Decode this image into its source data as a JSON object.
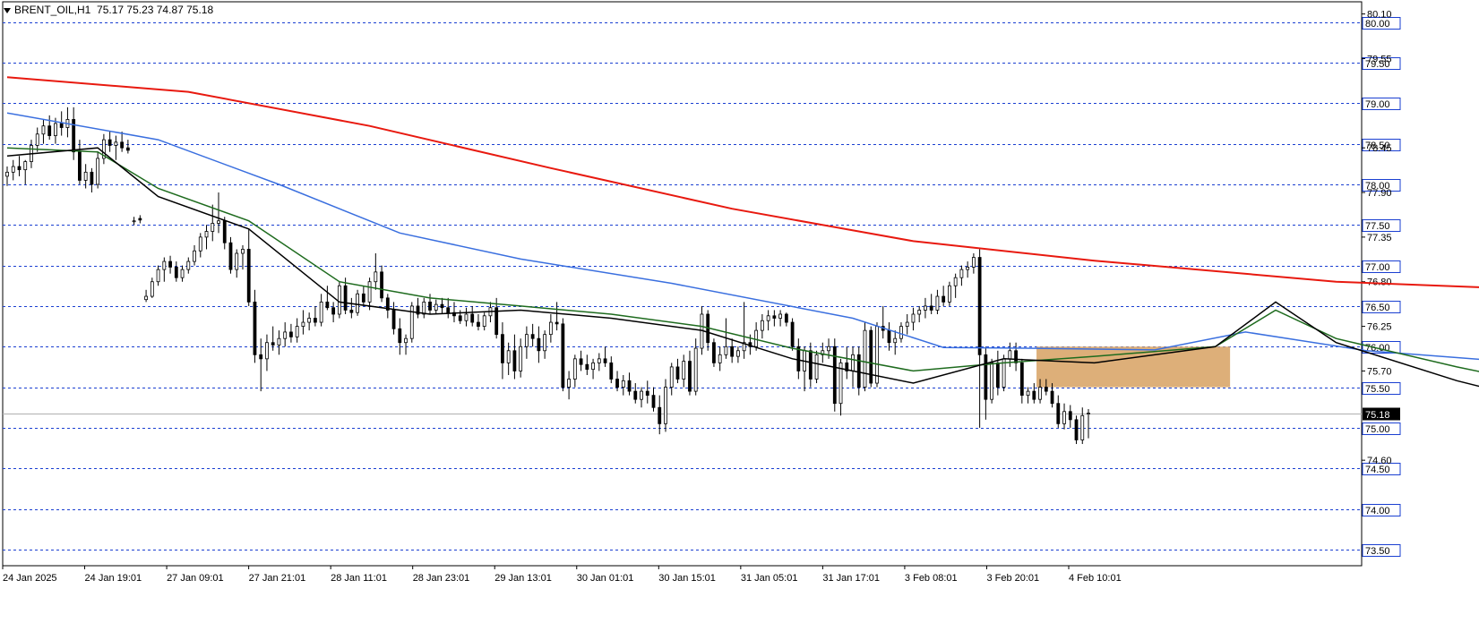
{
  "header": {
    "symbol": "BRENT_OIL,H1",
    "ohlc": "75.17 75.23 74.87 75.18"
  },
  "colors": {
    "background": "#ffffff",
    "grid_level": "#1a3fd1",
    "ma_fast": "#000000",
    "ma_mid": "#1e6b1e",
    "ma_slow": "#3a6fdf",
    "ma_long": "#e8190f",
    "zone_fill": "#d9a66a",
    "price_label_bg": "#000000"
  },
  "chart_data": {
    "type": "candlestick",
    "ylim": [
      73.3,
      80.25
    ],
    "y_ticks": [
      "80.10",
      "79.55",
      "78.45",
      "77.90",
      "77.35",
      "76.80",
      "76.25",
      "75.70",
      "74.60"
    ],
    "level_lines": [
      "80.00",
      "79.50",
      "79.00",
      "78.50",
      "78.00",
      "77.50",
      "77.00",
      "76.50",
      "76.00",
      "75.50",
      "75.00",
      "74.50",
      "74.00",
      "73.50"
    ],
    "current_price": "75.18",
    "x_labels": [
      "24 Jan 2025",
      "24 Jan 19:01",
      "27 Jan 09:01",
      "27 Jan 21:01",
      "28 Jan 11:01",
      "28 Jan 23:01",
      "29 Jan 13:01",
      "30 Jan 01:01",
      "30 Jan 15:01",
      "31 Jan 05:01",
      "31 Jan 17:01",
      "3 Feb 08:01",
      "3 Feb 20:01",
      "4 Feb 10:01"
    ],
    "zone": {
      "bar_start": 171,
      "bar_end": 198,
      "price_low": 75.5,
      "price_high": 76.0
    },
    "candles": [
      [
        78.1,
        78.22,
        77.98,
        78.15
      ],
      [
        78.15,
        78.3,
        78.05,
        78.22
      ],
      [
        78.22,
        78.35,
        78.1,
        78.18
      ],
      [
        78.18,
        78.3,
        78.0,
        78.28
      ],
      [
        78.28,
        78.55,
        78.2,
        78.48
      ],
      [
        78.48,
        78.7,
        78.4,
        78.62
      ],
      [
        78.62,
        78.8,
        78.5,
        78.72
      ],
      [
        78.72,
        78.85,
        78.55,
        78.6
      ],
      [
        78.6,
        78.82,
        78.5,
        78.75
      ],
      [
        78.75,
        78.9,
        78.6,
        78.7
      ],
      [
        78.7,
        78.95,
        78.58,
        78.8
      ],
      [
        78.8,
        78.95,
        78.3,
        78.4
      ],
      [
        78.4,
        78.55,
        78.0,
        78.05
      ],
      [
        78.05,
        78.25,
        77.95,
        78.15
      ],
      [
        78.15,
        78.2,
        77.9,
        78.0
      ],
      [
        78.0,
        78.4,
        77.95,
        78.32
      ],
      [
        78.32,
        78.62,
        78.25,
        78.55
      ],
      [
        78.55,
        78.65,
        78.4,
        78.48
      ],
      [
        78.48,
        78.6,
        78.3,
        78.52
      ],
      [
        78.52,
        78.65,
        78.4,
        78.45
      ],
      [
        78.45,
        78.55,
        78.38,
        78.42
      ],
      [
        77.55,
        77.6,
        77.5,
        77.55
      ],
      [
        77.58,
        77.62,
        77.52,
        77.56
      ],
      [
        76.58,
        76.7,
        76.55,
        76.62
      ],
      [
        76.62,
        76.85,
        76.6,
        76.8
      ],
      [
        76.8,
        77.0,
        76.75,
        76.95
      ],
      [
        76.95,
        77.1,
        76.8,
        77.05
      ],
      [
        77.05,
        77.12,
        76.9,
        76.98
      ],
      [
        76.98,
        77.05,
        76.8,
        76.85
      ],
      [
        76.85,
        77.0,
        76.8,
        76.95
      ],
      [
        76.95,
        77.1,
        76.9,
        77.05
      ],
      [
        77.05,
        77.25,
        77.0,
        77.18
      ],
      [
        77.18,
        77.4,
        77.1,
        77.35
      ],
      [
        77.35,
        77.5,
        77.2,
        77.42
      ],
      [
        77.42,
        77.75,
        77.3,
        77.52
      ],
      [
        77.52,
        77.9,
        77.4,
        77.55
      ],
      [
        77.55,
        77.6,
        77.2,
        77.28
      ],
      [
        77.28,
        77.35,
        76.9,
        76.95
      ],
      [
        76.95,
        77.2,
        76.85,
        77.15
      ],
      [
        77.15,
        77.25,
        76.95,
        77.2
      ],
      [
        77.2,
        77.45,
        76.5,
        76.55
      ],
      [
        76.55,
        76.7,
        75.8,
        75.9
      ],
      [
        75.9,
        76.1,
        75.45,
        75.85
      ],
      [
        75.85,
        76.15,
        75.7,
        76.05
      ],
      [
        76.05,
        76.25,
        75.95,
        76.02
      ],
      [
        76.02,
        76.2,
        75.9,
        76.1
      ],
      [
        76.1,
        76.3,
        76.0,
        76.18
      ],
      [
        76.18,
        76.28,
        76.05,
        76.12
      ],
      [
        76.12,
        76.35,
        76.05,
        76.25
      ],
      [
        76.25,
        76.45,
        76.15,
        76.3
      ],
      [
        76.3,
        76.42,
        76.2,
        76.35
      ],
      [
        76.35,
        76.5,
        76.25,
        76.3
      ],
      [
        76.3,
        76.65,
        76.25,
        76.55
      ],
      [
        76.55,
        76.75,
        76.45,
        76.48
      ],
      [
        76.48,
        76.55,
        76.3,
        76.4
      ],
      [
        76.4,
        76.8,
        76.35,
        76.75
      ],
      [
        76.75,
        76.85,
        76.4,
        76.45
      ],
      [
        76.45,
        76.6,
        76.35,
        76.42
      ],
      [
        76.42,
        76.7,
        76.38,
        76.65
      ],
      [
        76.65,
        76.75,
        76.5,
        76.55
      ],
      [
        76.55,
        76.85,
        76.45,
        76.8
      ],
      [
        76.8,
        77.15,
        76.7,
        76.92
      ],
      [
        76.92,
        77.0,
        76.55,
        76.6
      ],
      [
        76.6,
        76.65,
        76.35,
        76.45
      ],
      [
        76.45,
        76.55,
        76.15,
        76.22
      ],
      [
        76.22,
        76.35,
        75.9,
        76.05
      ],
      [
        76.05,
        76.15,
        75.9,
        76.1
      ],
      [
        76.1,
        76.55,
        76.05,
        76.5
      ],
      [
        76.5,
        76.6,
        76.35,
        76.4
      ],
      [
        76.4,
        76.6,
        76.35,
        76.55
      ],
      [
        76.55,
        76.65,
        76.4,
        76.45
      ],
      [
        76.45,
        76.58,
        76.4,
        76.52
      ],
      [
        76.52,
        76.6,
        76.4,
        76.48
      ],
      [
        76.48,
        76.6,
        76.35,
        76.42
      ],
      [
        76.42,
        76.55,
        76.3,
        76.38
      ],
      [
        76.38,
        76.45,
        76.28,
        76.32
      ],
      [
        76.32,
        76.48,
        76.25,
        76.4
      ],
      [
        76.4,
        76.5,
        76.25,
        76.3
      ],
      [
        76.3,
        76.4,
        76.2,
        76.25
      ],
      [
        76.25,
        76.42,
        76.2,
        76.38
      ],
      [
        76.38,
        76.55,
        76.3,
        76.48
      ],
      [
        76.48,
        76.6,
        76.1,
        76.15
      ],
      [
        76.15,
        76.3,
        75.6,
        75.8
      ],
      [
        75.8,
        76.05,
        75.65,
        75.95
      ],
      [
        75.95,
        76.15,
        75.6,
        75.7
      ],
      [
        75.7,
        76.1,
        75.62,
        76.0
      ],
      [
        76.0,
        76.25,
        75.85,
        76.15
      ],
      [
        76.15,
        76.28,
        76.0,
        76.1
      ],
      [
        76.1,
        76.25,
        75.8,
        75.95
      ],
      [
        75.95,
        76.2,
        75.85,
        76.15
      ],
      [
        76.15,
        76.4,
        76.05,
        76.3
      ],
      [
        76.3,
        76.55,
        76.2,
        76.28
      ],
      [
        76.28,
        76.35,
        75.45,
        75.5
      ],
      [
        75.5,
        75.7,
        75.35,
        75.6
      ],
      [
        75.6,
        75.9,
        75.5,
        75.85
      ],
      [
        75.85,
        75.95,
        75.7,
        75.78
      ],
      [
        75.78,
        75.9,
        75.65,
        75.72
      ],
      [
        75.72,
        75.85,
        75.6,
        75.8
      ],
      [
        75.8,
        75.92,
        75.7,
        75.85
      ],
      [
        75.85,
        76.0,
        75.75,
        75.8
      ],
      [
        75.8,
        75.88,
        75.55,
        75.6
      ],
      [
        75.6,
        75.7,
        75.45,
        75.5
      ],
      [
        75.5,
        75.65,
        75.4,
        75.58
      ],
      [
        75.58,
        75.68,
        75.4,
        75.45
      ],
      [
        75.45,
        75.55,
        75.3,
        75.35
      ],
      [
        75.35,
        75.5,
        75.25,
        75.45
      ],
      [
        75.45,
        75.58,
        75.3,
        75.4
      ],
      [
        75.4,
        75.5,
        75.2,
        75.25
      ],
      [
        75.25,
        75.4,
        74.92,
        75.05
      ],
      [
        75.05,
        75.6,
        74.95,
        75.5
      ],
      [
        75.5,
        75.8,
        75.4,
        75.75
      ],
      [
        75.75,
        75.85,
        75.55,
        75.6
      ],
      [
        75.6,
        75.9,
        75.5,
        75.82
      ],
      [
        75.82,
        75.95,
        75.4,
        75.45
      ],
      [
        75.45,
        76.1,
        75.4,
        75.98
      ],
      [
        75.98,
        76.5,
        75.9,
        76.4
      ],
      [
        76.4,
        76.45,
        75.95,
        76.05
      ],
      [
        76.05,
        76.1,
        75.75,
        75.8
      ],
      [
        75.8,
        76.0,
        75.7,
        75.9
      ],
      [
        75.9,
        76.35,
        75.85,
        76.0
      ],
      [
        76.0,
        76.1,
        75.8,
        75.88
      ],
      [
        75.88,
        76.0,
        75.8,
        75.95
      ],
      [
        75.95,
        76.55,
        75.85,
        76.05
      ],
      [
        76.05,
        76.15,
        75.9,
        76.0
      ],
      [
        76.0,
        76.3,
        75.95,
        76.2
      ],
      [
        76.2,
        76.4,
        76.1,
        76.32
      ],
      [
        76.32,
        76.45,
        76.2,
        76.38
      ],
      [
        76.38,
        76.45,
        76.25,
        76.35
      ],
      [
        76.35,
        76.45,
        76.25,
        76.4
      ],
      [
        76.4,
        76.42,
        76.25,
        76.3
      ],
      [
        76.3,
        76.35,
        75.95,
        76.0
      ],
      [
        76.0,
        76.1,
        75.6,
        75.7
      ],
      [
        75.7,
        76.0,
        75.45,
        75.95
      ],
      [
        75.95,
        76.05,
        75.5,
        75.6
      ],
      [
        75.6,
        75.95,
        75.55,
        75.9
      ],
      [
        75.9,
        76.05,
        75.8,
        75.95
      ],
      [
        75.95,
        76.1,
        75.85,
        76.0
      ],
      [
        76.0,
        76.1,
        75.2,
        75.3
      ],
      [
        75.3,
        75.85,
        75.15,
        75.8
      ],
      [
        75.8,
        76.0,
        75.6,
        75.7
      ],
      [
        75.7,
        76.0,
        75.5,
        75.9
      ],
      [
        75.9,
        76.0,
        75.4,
        75.5
      ],
      [
        75.5,
        76.3,
        75.45,
        76.2
      ],
      [
        76.2,
        76.25,
        75.5,
        75.55
      ],
      [
        75.55,
        76.3,
        75.5,
        76.25
      ],
      [
        76.25,
        76.5,
        76.1,
        76.2
      ],
      [
        76.2,
        76.3,
        75.95,
        76.05
      ],
      [
        76.05,
        76.2,
        75.9,
        76.1
      ],
      [
        76.1,
        76.3,
        76.05,
        76.25
      ],
      [
        76.25,
        76.4,
        76.15,
        76.3
      ],
      [
        76.3,
        76.48,
        76.2,
        76.4
      ],
      [
        76.4,
        76.5,
        76.3,
        76.45
      ],
      [
        76.45,
        76.6,
        76.35,
        76.5
      ],
      [
        76.5,
        76.65,
        76.4,
        76.45
      ],
      [
        76.45,
        76.7,
        76.4,
        76.62
      ],
      [
        76.62,
        76.75,
        76.5,
        76.55
      ],
      [
        76.55,
        76.8,
        76.5,
        76.75
      ],
      [
        76.75,
        76.9,
        76.6,
        76.85
      ],
      [
        76.85,
        77.0,
        76.75,
        76.95
      ],
      [
        76.95,
        77.05,
        76.85,
        76.98
      ],
      [
        76.98,
        77.15,
        76.9,
        77.1
      ],
      [
        77.1,
        77.2,
        75.0,
        75.9
      ],
      [
        75.9,
        76.0,
        75.1,
        75.35
      ],
      [
        75.35,
        75.85,
        75.3,
        75.8
      ],
      [
        75.8,
        75.95,
        75.4,
        75.5
      ],
      [
        75.5,
        75.9,
        75.45,
        75.85
      ],
      [
        75.85,
        76.05,
        75.75,
        75.95
      ],
      [
        75.95,
        76.05,
        75.7,
        75.8
      ],
      [
        75.8,
        75.85,
        75.3,
        75.4
      ],
      [
        75.4,
        75.5,
        75.3,
        75.45
      ],
      [
        75.45,
        75.55,
        75.3,
        75.35
      ],
      [
        75.35,
        75.6,
        75.3,
        75.5
      ],
      [
        75.5,
        75.6,
        75.4,
        75.45
      ],
      [
        75.45,
        75.55,
        75.25,
        75.3
      ],
      [
        75.3,
        75.4,
        75.0,
        75.05
      ],
      [
        75.05,
        75.3,
        74.98,
        75.2
      ],
      [
        75.2,
        75.28,
        75.0,
        75.1
      ],
      [
        75.1,
        75.15,
        74.8,
        74.85
      ],
      [
        74.85,
        75.25,
        74.8,
        75.15
      ],
      [
        75.17,
        75.23,
        74.87,
        75.18
      ]
    ],
    "indicators": [
      {
        "color": "#e8190f",
        "points": [
          [
            0,
            79.32
          ],
          [
            30,
            79.14
          ],
          [
            60,
            78.72
          ],
          [
            90,
            78.2
          ],
          [
            120,
            77.7
          ],
          [
            150,
            77.3
          ],
          [
            180,
            77.06
          ],
          [
            220,
            76.8
          ],
          [
            255,
            76.7
          ]
        ]
      },
      {
        "color": "#3a6fdf",
        "points": [
          [
            0,
            78.88
          ],
          [
            25,
            78.55
          ],
          [
            45,
            78.0
          ],
          [
            65,
            77.4
          ],
          [
            85,
            77.08
          ],
          [
            110,
            76.78
          ],
          [
            140,
            76.35
          ],
          [
            155,
            75.99
          ],
          [
            170,
            75.98
          ],
          [
            190,
            75.96
          ],
          [
            205,
            76.18
          ],
          [
            225,
            75.95
          ],
          [
            255,
            75.78
          ]
        ]
      },
      {
        "color": "#1e6b1e",
        "points": [
          [
            0,
            78.45
          ],
          [
            15,
            78.4
          ],
          [
            25,
            77.95
          ],
          [
            40,
            77.55
          ],
          [
            55,
            76.8
          ],
          [
            70,
            76.6
          ],
          [
            85,
            76.5
          ],
          [
            100,
            76.4
          ],
          [
            115,
            76.25
          ],
          [
            130,
            75.98
          ],
          [
            150,
            75.7
          ],
          [
            165,
            75.8
          ],
          [
            180,
            75.88
          ],
          [
            200,
            76.0
          ],
          [
            210,
            76.45
          ],
          [
            220,
            76.1
          ],
          [
            240,
            75.75
          ],
          [
            255,
            75.52
          ]
        ]
      },
      {
        "color": "#000000",
        "points": [
          [
            0,
            78.35
          ],
          [
            15,
            78.45
          ],
          [
            25,
            77.85
          ],
          [
            40,
            77.45
          ],
          [
            55,
            76.55
          ],
          [
            70,
            76.4
          ],
          [
            85,
            76.45
          ],
          [
            100,
            76.35
          ],
          [
            115,
            76.2
          ],
          [
            130,
            75.85
          ],
          [
            150,
            75.55
          ],
          [
            165,
            75.85
          ],
          [
            180,
            75.8
          ],
          [
            200,
            76.0
          ],
          [
            210,
            76.55
          ],
          [
            220,
            76.05
          ],
          [
            240,
            75.58
          ],
          [
            255,
            75.3
          ]
        ]
      }
    ]
  }
}
